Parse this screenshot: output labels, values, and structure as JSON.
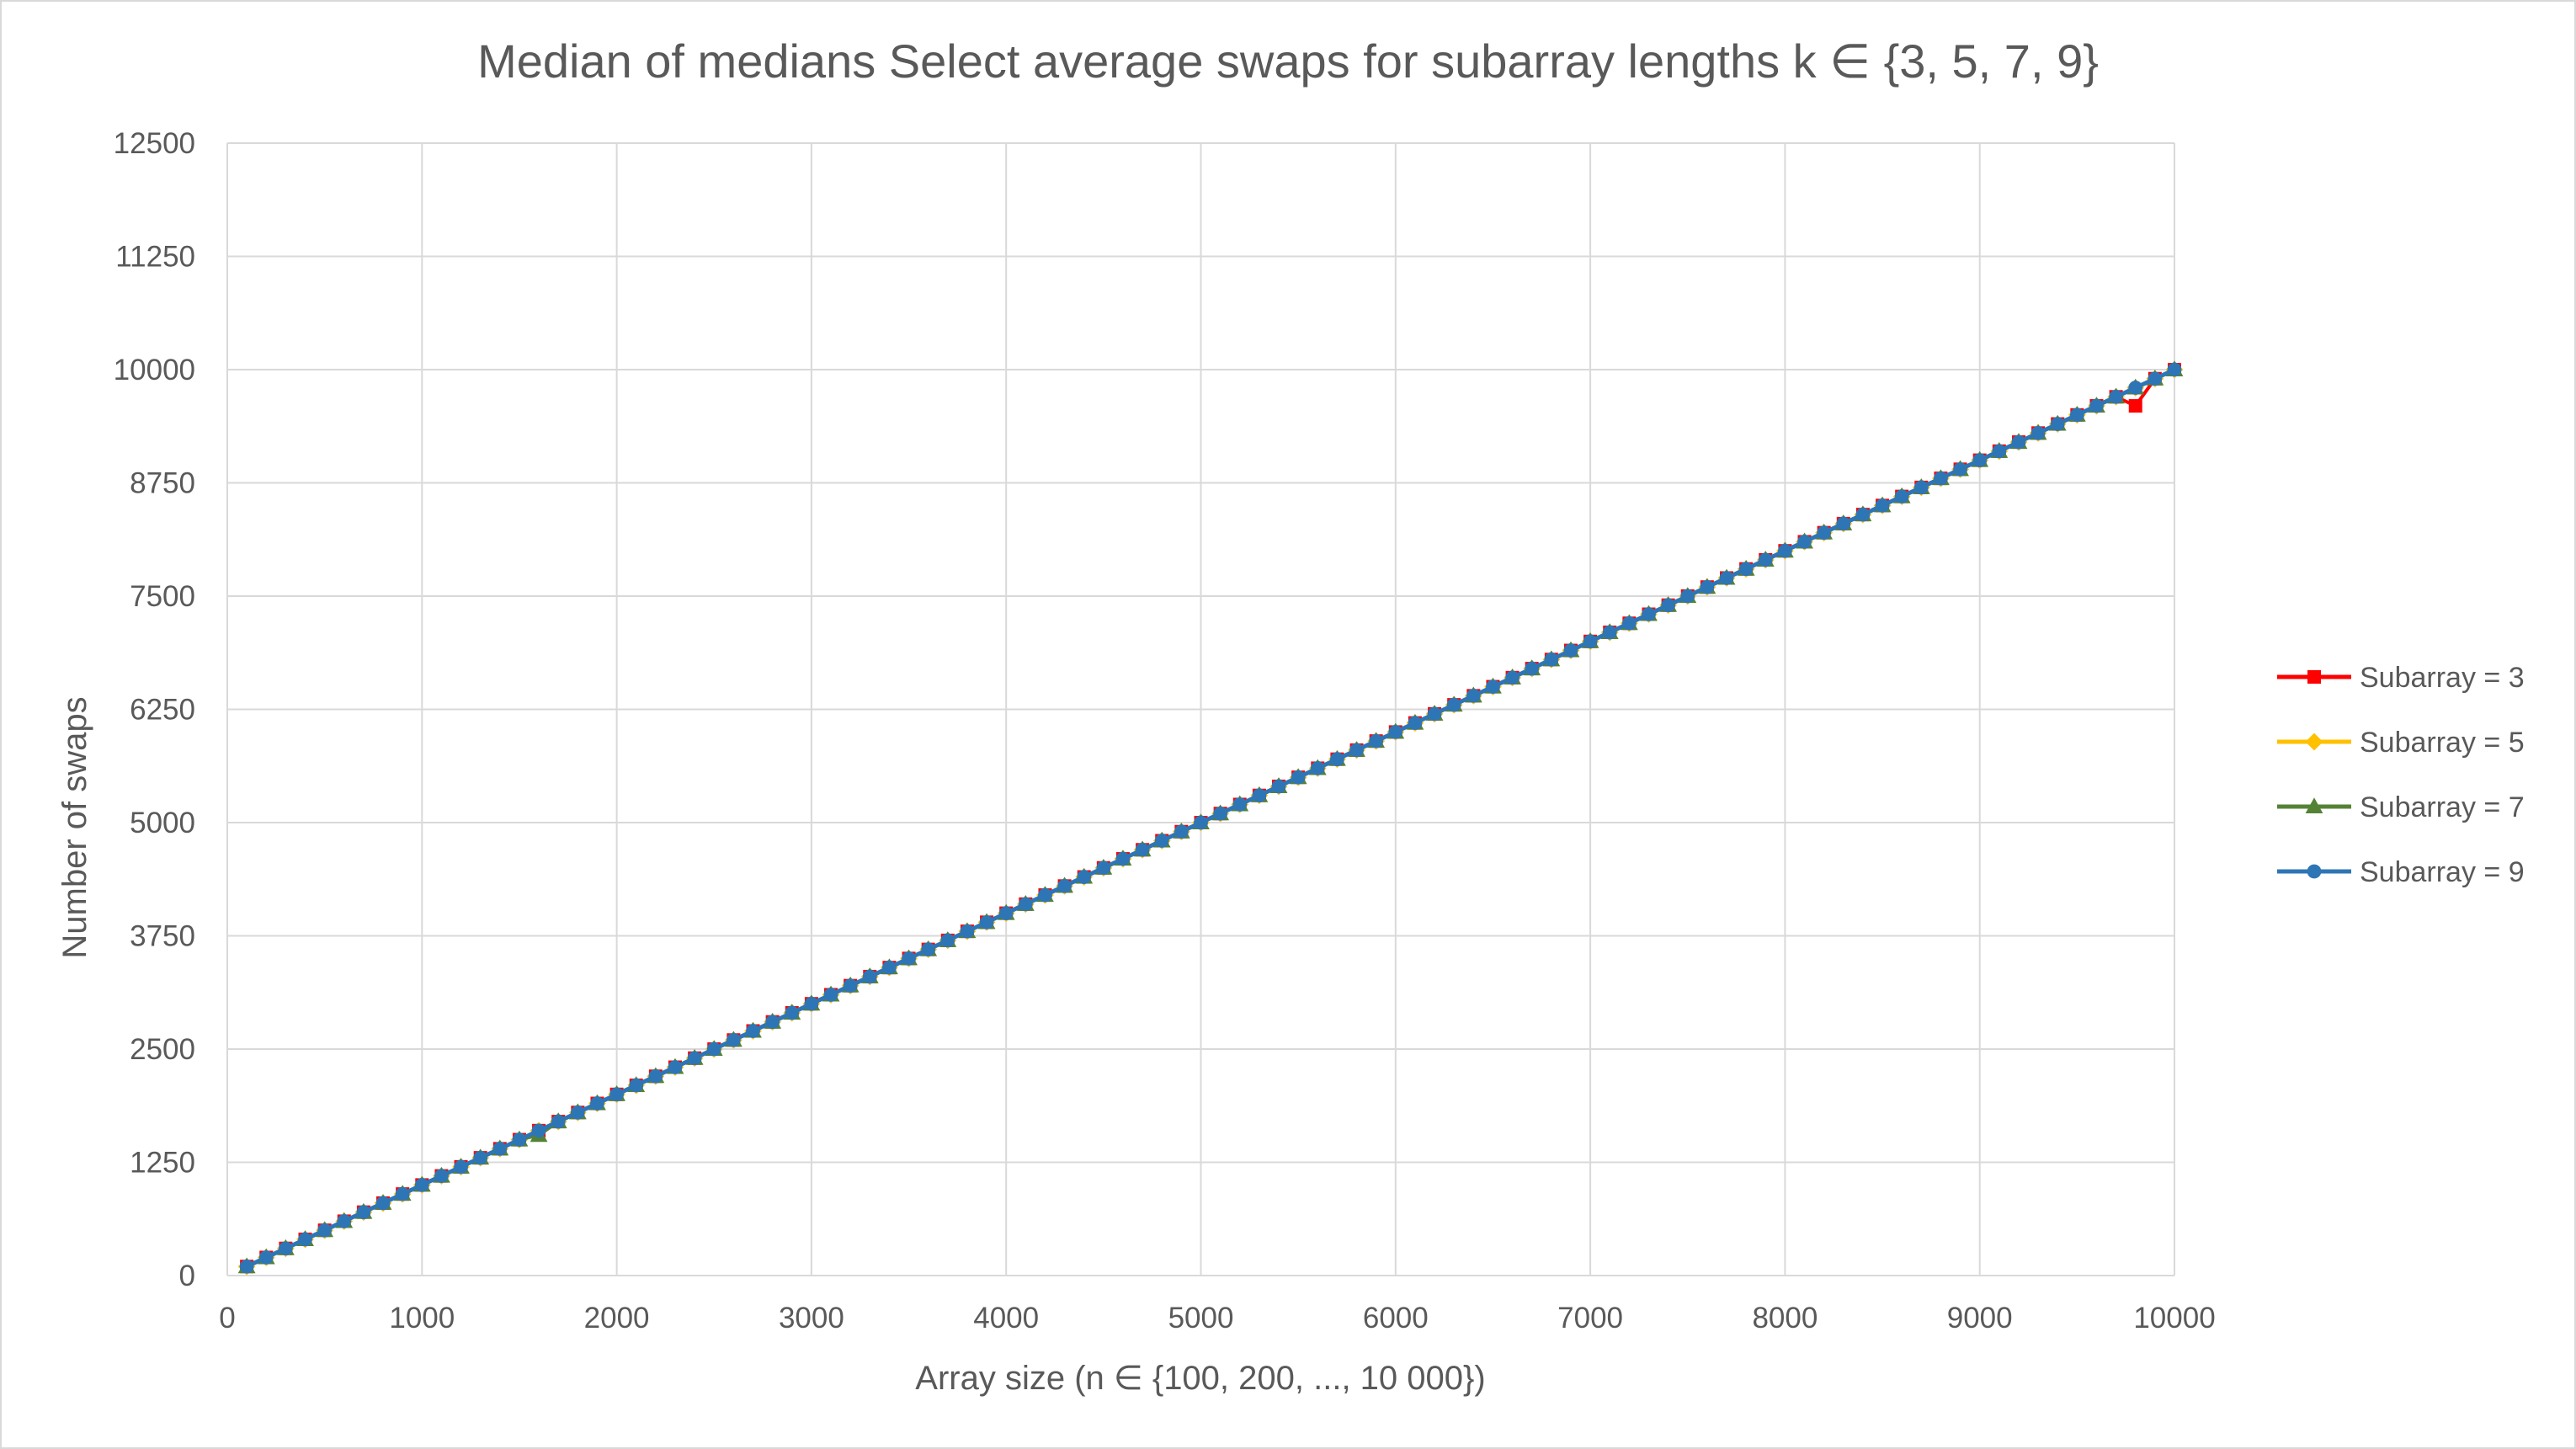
{
  "chart_data": {
    "type": "line",
    "title": "Median of medians Select average swaps for subarray lengths k ∈ {3, 5, 7, 9}",
    "xlabel": "Array size (n ∈ {100, 200, ..., 10 000})",
    "ylabel": "Number of swaps",
    "xlim": [
      0,
      10000
    ],
    "ylim": [
      0,
      12500
    ],
    "x_ticks": [
      "0",
      "1000",
      "2000",
      "3000",
      "4000",
      "5000",
      "6000",
      "7000",
      "8000",
      "9000",
      "10000"
    ],
    "y_ticks": [
      "0",
      "1250",
      "2500",
      "3750",
      "5000",
      "6250",
      "7500",
      "8750",
      "10000",
      "11250",
      "12500"
    ],
    "grid": true,
    "legend_position": "right",
    "x": [
      100,
      200,
      300,
      400,
      500,
      600,
      700,
      800,
      900,
      1000,
      1100,
      1200,
      1300,
      1400,
      1500,
      1600,
      1700,
      1800,
      1900,
      2000,
      2100,
      2200,
      2300,
      2400,
      2500,
      2600,
      2700,
      2800,
      2900,
      3000,
      3100,
      3200,
      3300,
      3400,
      3500,
      3600,
      3700,
      3800,
      3900,
      4000,
      4100,
      4200,
      4300,
      4400,
      4500,
      4600,
      4700,
      4800,
      4900,
      5000,
      5100,
      5200,
      5300,
      5400,
      5500,
      5600,
      5700,
      5800,
      5900,
      6000,
      6100,
      6200,
      6300,
      6400,
      6500,
      6600,
      6700,
      6800,
      6900,
      7000,
      7100,
      7200,
      7300,
      7400,
      7500,
      7600,
      7700,
      7800,
      7900,
      8000,
      8100,
      8200,
      8300,
      8400,
      8500,
      8600,
      8700,
      8800,
      8900,
      9000,
      9100,
      9200,
      9300,
      9400,
      9500,
      9600,
      9700,
      9800,
      9900,
      10000
    ],
    "series": [
      {
        "name": "Subarray = 3",
        "color": "#ff0000",
        "marker": "square",
        "values": [
          100,
          200,
          300,
          400,
          500,
          600,
          700,
          800,
          900,
          1000,
          1100,
          1200,
          1300,
          1400,
          1500,
          1600,
          1700,
          1800,
          1900,
          2000,
          2100,
          2200,
          2300,
          2400,
          2500,
          2600,
          2700,
          2800,
          2900,
          3000,
          3100,
          3200,
          3300,
          3400,
          3500,
          3600,
          3700,
          3800,
          3900,
          4000,
          4100,
          4200,
          4300,
          4400,
          4500,
          4600,
          4700,
          4800,
          4900,
          5000,
          5100,
          5200,
          5300,
          5400,
          5500,
          5600,
          5700,
          5800,
          5900,
          6000,
          6100,
          6200,
          6300,
          6400,
          6500,
          6600,
          6700,
          6800,
          6900,
          7000,
          7100,
          7200,
          7300,
          7400,
          7500,
          7600,
          7700,
          7800,
          7900,
          8000,
          8100,
          8200,
          8300,
          8400,
          8500,
          8600,
          8700,
          8800,
          8900,
          9000,
          9100,
          9200,
          9300,
          9400,
          9500,
          9600,
          9700,
          9600,
          9900,
          10000
        ]
      },
      {
        "name": "Subarray = 5",
        "color": "#ffc000",
        "marker": "diamond",
        "values": [
          100,
          200,
          300,
          400,
          500,
          600,
          700,
          800,
          900,
          1000,
          1100,
          1200,
          1300,
          1400,
          1500,
          1600,
          1700,
          1800,
          1900,
          2000,
          2100,
          2200,
          2300,
          2400,
          2500,
          2600,
          2700,
          2800,
          2900,
          3000,
          3100,
          3200,
          3300,
          3400,
          3500,
          3600,
          3700,
          3800,
          3900,
          4000,
          4100,
          4200,
          4300,
          4400,
          4500,
          4600,
          4700,
          4800,
          4900,
          5000,
          5100,
          5200,
          5300,
          5400,
          5500,
          5600,
          5700,
          5800,
          5900,
          6000,
          6100,
          6200,
          6300,
          6400,
          6500,
          6600,
          6700,
          6800,
          6900,
          7000,
          7100,
          7200,
          7300,
          7400,
          7500,
          7600,
          7700,
          7800,
          7900,
          8000,
          8100,
          8200,
          8300,
          8400,
          8500,
          8600,
          8700,
          8800,
          8900,
          9000,
          9100,
          9200,
          9300,
          9400,
          9500,
          9600,
          9700,
          9800,
          9900,
          10000
        ]
      },
      {
        "name": "Subarray = 7",
        "color": "#548235",
        "marker": "triangle",
        "values": [
          100,
          200,
          300,
          400,
          500,
          600,
          700,
          800,
          900,
          1000,
          1100,
          1200,
          1300,
          1400,
          1500,
          1550,
          1700,
          1800,
          1900,
          2000,
          2100,
          2200,
          2300,
          2400,
          2500,
          2600,
          2700,
          2800,
          2900,
          3000,
          3100,
          3200,
          3300,
          3400,
          3500,
          3600,
          3700,
          3800,
          3900,
          4000,
          4100,
          4200,
          4300,
          4400,
          4500,
          4600,
          4700,
          4800,
          4900,
          5000,
          5100,
          5200,
          5300,
          5400,
          5500,
          5600,
          5700,
          5800,
          5900,
          6000,
          6100,
          6200,
          6300,
          6400,
          6500,
          6600,
          6700,
          6800,
          6900,
          7000,
          7100,
          7200,
          7300,
          7400,
          7500,
          7600,
          7700,
          7800,
          7900,
          8000,
          8100,
          8200,
          8300,
          8400,
          8500,
          8600,
          8700,
          8800,
          8900,
          9000,
          9100,
          9200,
          9300,
          9400,
          9500,
          9600,
          9700,
          9800,
          9900,
          10000
        ]
      },
      {
        "name": "Subarray = 9",
        "color": "#2e75b6",
        "marker": "circle",
        "values": [
          100,
          200,
          300,
          400,
          500,
          600,
          700,
          800,
          900,
          1000,
          1100,
          1200,
          1300,
          1400,
          1500,
          1600,
          1700,
          1800,
          1900,
          2000,
          2100,
          2200,
          2300,
          2400,
          2500,
          2600,
          2700,
          2800,
          2900,
          3000,
          3100,
          3200,
          3300,
          3400,
          3500,
          3600,
          3700,
          3800,
          3900,
          4000,
          4100,
          4200,
          4300,
          4400,
          4500,
          4600,
          4700,
          4800,
          4900,
          5000,
          5100,
          5200,
          5300,
          5400,
          5500,
          5600,
          5700,
          5800,
          5900,
          6000,
          6100,
          6200,
          6300,
          6400,
          6500,
          6600,
          6700,
          6800,
          6900,
          7000,
          7100,
          7200,
          7300,
          7400,
          7500,
          7600,
          7700,
          7800,
          7900,
          8000,
          8100,
          8200,
          8300,
          8400,
          8500,
          8600,
          8700,
          8800,
          8900,
          9000,
          9100,
          9200,
          9300,
          9400,
          9500,
          9600,
          9700,
          9800,
          9900,
          10000
        ]
      }
    ]
  }
}
